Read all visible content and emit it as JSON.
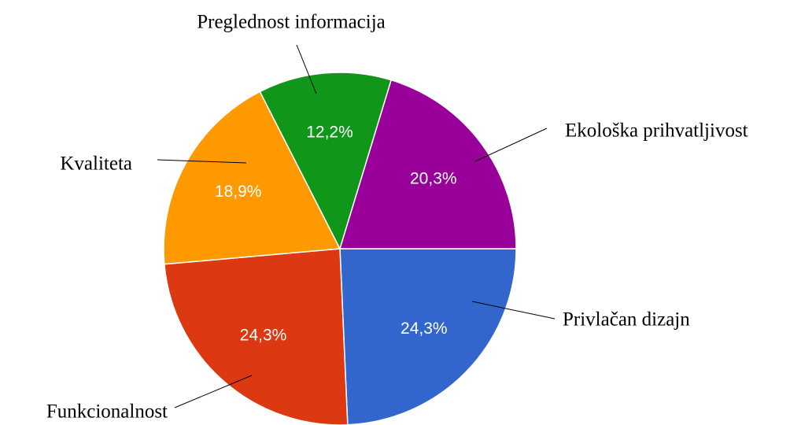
{
  "chart_data": {
    "type": "pie",
    "categories": [
      "Privlačan dizajn",
      "Funkcionalnost",
      "Kvaliteta",
      "Preglednost informacija",
      "Ekološka prihvatljivost"
    ],
    "values": [
      24.3,
      24.3,
      18.9,
      12.2,
      20.3
    ],
    "value_labels": [
      "24,3%",
      "24,3%",
      "18,9%",
      "12,2%",
      "20,3%"
    ],
    "colors": [
      "#3366cc",
      "#dc3912",
      "#ff9900",
      "#109618",
      "#990099"
    ]
  }
}
